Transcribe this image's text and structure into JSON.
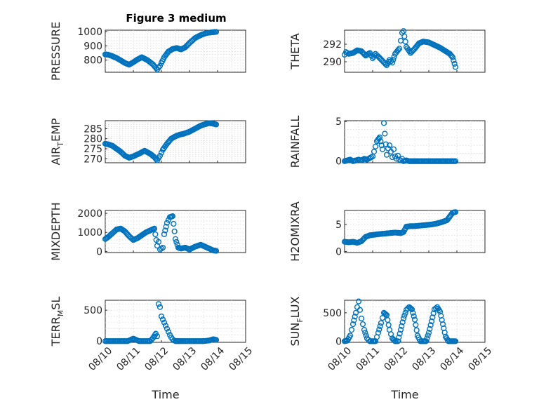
{
  "figure_title": "Figure 3 medium",
  "colors": {
    "marker": "#0072BD",
    "axes": "#262626",
    "grid": "#d9d9d9"
  },
  "chart_data": [
    {
      "type": "scatter",
      "col": 0,
      "row": 0,
      "title": "Figure 3 medium",
      "ylabel": "PRESSURE",
      "ylabel_sub": null,
      "xlabel": "",
      "xlim": [
        "08/10",
        "08/15"
      ],
      "ylim": [
        715,
        1010
      ],
      "yticks": [
        800,
        900,
        1000
      ],
      "x_tick_labels": [],
      "minor_grid": true,
      "series": [
        {
          "x": [
            0,
            0.1,
            0.25,
            0.4,
            0.55,
            0.7,
            0.85,
            1.0,
            1.15,
            1.3,
            1.5,
            1.7,
            1.85,
            1.95,
            2.0,
            2.1,
            2.25,
            2.4,
            2.55,
            2.7,
            2.85,
            3.0,
            3.2,
            3.4,
            3.6,
            3.8,
            3.95
          ],
          "y": [
            840,
            838,
            828,
            815,
            798,
            780,
            768,
            785,
            805,
            820,
            800,
            770,
            735,
            760,
            780,
            820,
            860,
            878,
            885,
            875,
            890,
            920,
            955,
            975,
            990,
            995,
            998
          ]
        }
      ]
    },
    {
      "type": "scatter",
      "col": 1,
      "row": 0,
      "ylabel": "THETA",
      "ylabel_sub": null,
      "xlabel": "",
      "xlim": [
        "08/10",
        "08/15"
      ],
      "ylim": [
        288.8,
        293.6
      ],
      "yticks": [
        290,
        292
      ],
      "x_tick_labels": [],
      "minor_grid": true,
      "series": [
        {
          "x": [
            0,
            0.05,
            0.15,
            0.3,
            0.45,
            0.6,
            0.75,
            0.9,
            1.0,
            1.1,
            1.2,
            1.35,
            1.5,
            1.6,
            1.7,
            1.8,
            1.95,
            2.05,
            2.1,
            2.2,
            2.35,
            2.5,
            2.65,
            2.8,
            3.0,
            3.2,
            3.4,
            3.6,
            3.75,
            3.85,
            3.95
          ],
          "y": [
            290.8,
            291.1,
            290.9,
            291.0,
            291.3,
            291.2,
            290.7,
            291.0,
            290.4,
            290.9,
            290.6,
            290.1,
            289.6,
            290.2,
            289.9,
            290.9,
            291.5,
            293.3,
            293.5,
            291.7,
            291.0,
            291.5,
            292.1,
            292.3,
            292.2,
            291.9,
            291.6,
            291.2,
            290.9,
            290.5,
            289.4
          ]
        }
      ]
    },
    {
      "type": "scatter",
      "col": 0,
      "row": 1,
      "ylabel": "AIR",
      "ylabel_sub": "T",
      "ylabel_suffix": "EMP",
      "xlabel": "",
      "xlim": [
        "08/10",
        "08/15"
      ],
      "ylim": [
        268,
        289
      ],
      "yticks": [
        270,
        275,
        280,
        285
      ],
      "x_tick_labels": [],
      "minor_grid": true,
      "series": [
        {
          "x": [
            0,
            0.1,
            0.25,
            0.4,
            0.55,
            0.7,
            0.85,
            1.0,
            1.2,
            1.4,
            1.6,
            1.75,
            1.85,
            1.95,
            2.05,
            2.2,
            2.35,
            2.5,
            2.65,
            2.8,
            3.0,
            3.2,
            3.4,
            3.55,
            3.7,
            3.85,
            3.95
          ],
          "y": [
            277.5,
            277.2,
            276.5,
            275.0,
            273.5,
            271.5,
            270.5,
            271.2,
            272.5,
            274.0,
            272.5,
            270.8,
            269.2,
            271.5,
            274.5,
            277.5,
            280.0,
            281.2,
            282.0,
            282.5,
            283.5,
            285.0,
            286.5,
            287.2,
            287.8,
            287.5,
            287.1
          ]
        }
      ]
    },
    {
      "type": "scatter",
      "col": 1,
      "row": 1,
      "ylabel": "RAINFALL",
      "ylabel_sub": null,
      "xlabel": "",
      "xlim": [
        "08/10",
        "08/15"
      ],
      "ylim": [
        -0.2,
        5.1
      ],
      "yticks": [
        0,
        5
      ],
      "x_tick_labels": [],
      "minor_grid": true,
      "series": [
        {
          "x": [
            0,
            0.1,
            0.2,
            0.3,
            0.4,
            0.5,
            0.6,
            0.7,
            0.8,
            0.9,
            1.0,
            1.05,
            1.15,
            1.25,
            1.35,
            1.4,
            1.5,
            1.55,
            1.6,
            1.65,
            1.7,
            1.75,
            1.8,
            1.85,
            1.9,
            1.95,
            2.0,
            2.05,
            2.1,
            2.2,
            2.3,
            2.4,
            2.5,
            2.7,
            2.9,
            3.1,
            3.3,
            3.5,
            3.7,
            3.9,
            3.95
          ],
          "y": [
            0,
            0.1,
            0.2,
            0,
            0.1,
            0.2,
            0.1,
            0.3,
            0.2,
            0.4,
            0.6,
            1.2,
            2.5,
            3.0,
            1.5,
            4.8,
            0.8,
            1.6,
            2.0,
            1.2,
            0.5,
            1.5,
            0.6,
            0.3,
            0.7,
            0.2,
            0.1,
            0.3,
            0,
            0.1,
            0,
            0,
            0,
            0,
            0,
            0,
            0,
            0,
            0,
            0,
            0
          ]
        }
      ]
    },
    {
      "type": "scatter",
      "col": 0,
      "row": 2,
      "ylabel": "MIXDEPTH",
      "ylabel_sub": null,
      "xlabel": "",
      "xlim": [
        "08/10",
        "08/15"
      ],
      "ylim": [
        -60,
        2150
      ],
      "yticks": [
        0,
        1000,
        2000
      ],
      "x_tick_labels": [],
      "minor_grid": true,
      "series": [
        {
          "x": [
            0,
            0.1,
            0.25,
            0.4,
            0.55,
            0.7,
            0.85,
            1.0,
            1.15,
            1.3,
            1.45,
            1.6,
            1.75,
            1.85,
            1.9,
            1.95,
            2.05,
            2.1,
            2.2,
            2.3,
            2.4,
            2.5,
            2.6,
            2.7,
            2.85,
            3.0,
            3.2,
            3.4,
            3.55,
            3.7,
            3.85,
            3.95
          ],
          "y": [
            650,
            750,
            950,
            1150,
            1200,
            1050,
            800,
            600,
            700,
            850,
            1000,
            1100,
            1200,
            300,
            500,
            100,
            200,
            900,
            1500,
            1800,
            1850,
            650,
            200,
            150,
            200,
            100,
            250,
            350,
            250,
            150,
            50,
            30
          ]
        }
      ]
    },
    {
      "type": "scatter",
      "col": 1,
      "row": 2,
      "ylabel": "H2OMIXRA",
      "ylabel_sub": null,
      "xlabel": "",
      "xlim": [
        "08/10",
        "08/15"
      ],
      "ylim": [
        -0.2,
        7.6
      ],
      "yticks": [
        0,
        5
      ],
      "x_tick_labels": [],
      "minor_grid": true,
      "series": [
        {
          "x": [
            0,
            0.15,
            0.3,
            0.45,
            0.6,
            0.75,
            0.9,
            1.05,
            1.2,
            1.4,
            1.6,
            1.8,
            2.0,
            2.1,
            2.2,
            2.35,
            2.5,
            2.7,
            2.9,
            3.1,
            3.3,
            3.5,
            3.65,
            3.75,
            3.85,
            3.95
          ],
          "y": [
            1.8,
            1.7,
            1.8,
            1.6,
            1.9,
            2.7,
            3.0,
            3.1,
            3.2,
            3.3,
            3.4,
            3.5,
            3.4,
            3.6,
            4.6,
            4.7,
            4.7,
            4.8,
            4.9,
            5.0,
            5.2,
            5.5,
            5.8,
            6.5,
            7.2,
            7.3
          ]
        }
      ]
    },
    {
      "type": "scatter",
      "col": 0,
      "row": 3,
      "ylabel": "TERR",
      "ylabel_sub": "M",
      "ylabel_suffix": "SL",
      "xlabel": "Time",
      "xlim": [
        "08/10",
        "08/15"
      ],
      "ylim": [
        -20,
        660
      ],
      "yticks": [
        0,
        500
      ],
      "x_tick_labels": [
        "08/10",
        "08/11",
        "08/12",
        "08/13",
        "08/14",
        "08/15"
      ],
      "minor_grid": true,
      "series": [
        {
          "x": [
            0,
            0.2,
            0.4,
            0.6,
            0.8,
            1.0,
            1.2,
            1.4,
            1.6,
            1.7,
            1.8,
            1.85,
            1.9,
            1.95,
            2.0,
            2.05,
            2.1,
            2.15,
            2.2,
            2.25,
            2.3,
            2.35,
            2.4,
            2.45,
            2.5,
            2.6,
            2.7,
            2.9,
            3.1,
            3.3,
            3.5,
            3.7,
            3.85,
            3.95
          ],
          "y": [
            0,
            0,
            0,
            0,
            0,
            40,
            0,
            0,
            0,
            50,
            120,
            80,
            600,
            550,
            400,
            350,
            300,
            250,
            200,
            150,
            100,
            60,
            30,
            10,
            0,
            0,
            0,
            0,
            0,
            0,
            0,
            10,
            30,
            20
          ]
        }
      ]
    },
    {
      "type": "scatter",
      "col": 1,
      "row": 3,
      "ylabel": "SUN",
      "ylabel_sub": "F",
      "ylabel_suffix": "LUX",
      "xlabel": "Time",
      "xlim": [
        "08/10",
        "08/15"
      ],
      "ylim": [
        -20,
        720
      ],
      "yticks": [
        0,
        500
      ],
      "x_tick_labels": [
        "08/10",
        "08/11",
        "08/12",
        "08/13",
        "08/14",
        "08/15"
      ],
      "minor_grid": true,
      "series": [
        {
          "x": [
            0,
            0.1,
            0.2,
            0.3,
            0.4,
            0.5,
            0.6,
            0.7,
            0.8,
            0.9,
            1.0,
            1.1,
            1.2,
            1.3,
            1.4,
            1.5,
            1.6,
            1.7,
            1.8,
            1.9,
            2.0,
            2.1,
            2.2,
            2.3,
            2.4,
            2.5,
            2.6,
            2.7,
            2.8,
            2.9,
            3.0,
            3.1,
            3.2,
            3.3,
            3.4,
            3.5,
            3.6,
            3.7,
            3.8,
            3.9,
            3.95
          ],
          "y": [
            0,
            10,
            100,
            300,
            500,
            700,
            400,
            200,
            50,
            0,
            0,
            0,
            150,
            320,
            500,
            460,
            200,
            50,
            0,
            0,
            200,
            400,
            550,
            600,
            560,
            380,
            100,
            0,
            0,
            0,
            150,
            350,
            560,
            600,
            520,
            300,
            80,
            0,
            0,
            0,
            0
          ]
        }
      ]
    }
  ]
}
